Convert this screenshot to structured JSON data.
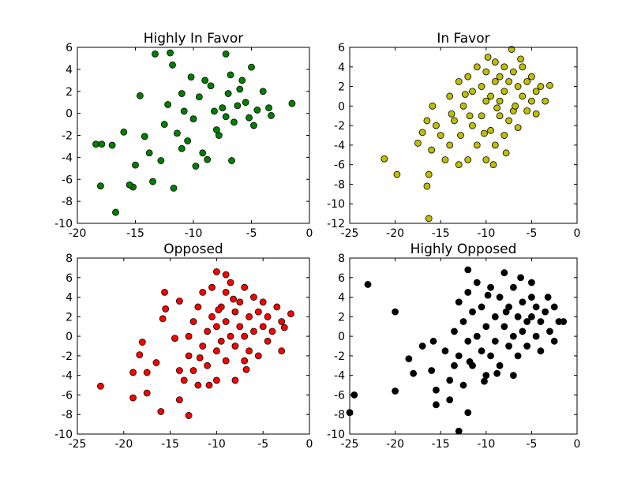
{
  "chart_data": [
    {
      "type": "scatter",
      "title": "Highly In Favor",
      "color": "#008000",
      "xlim": [
        -20,
        0
      ],
      "ylim": [
        -10,
        6
      ],
      "xticks": [
        -20,
        -15,
        -10,
        -5,
        0
      ],
      "yticks": [
        -10,
        -8,
        -6,
        -4,
        -2,
        0,
        2,
        4,
        6
      ],
      "x": [
        -16.7,
        -18,
        -15.2,
        -15.5,
        -18.4,
        -17.9,
        -17,
        -13.3,
        -12,
        -11.8,
        -7.2,
        -1.5,
        -11.7,
        -14.6,
        -16,
        -6.7,
        -3.3,
        -15,
        -13.5,
        -14.2,
        -12.5,
        -12.8,
        -11,
        -10.5,
        -10,
        -9.5,
        -9,
        -8.5,
        -8,
        -7.5,
        -7,
        -6.5,
        -6,
        -5.5,
        -5,
        -4.5,
        -4,
        -3.5,
        -9.8,
        -8.8,
        -7.8,
        -10.2,
        -11.4,
        -12.2,
        -13.8,
        -9.2,
        -7.2,
        -6.2,
        -5.2,
        -8.2,
        -6.8,
        -5.8,
        -10.8,
        -11,
        -4.8
      ],
      "y": [
        -9,
        -6.6,
        -6.7,
        -6.5,
        -2.8,
        -2.8,
        -2.9,
        5.4,
        5.5,
        4.4,
        5.4,
        0.9,
        -6.8,
        1.6,
        -1.7,
        -4.3,
        -0.2,
        -4.7,
        -6.2,
        -2.1,
        -1,
        -4.3,
        -3.2,
        -2.5,
        -0.5,
        1.5,
        3,
        2.5,
        -1.5,
        0.5,
        1.8,
        -0.8,
        2.2,
        1,
        4.2,
        0.3,
        2,
        0.5,
        -4.8,
        -4.2,
        -2,
        3.3,
        -1.8,
        0.8,
        -3.6,
        -3.6,
        -0.3,
        0.7,
        -0.4,
        0.2,
        3.5,
        3,
        0.2,
        1.8,
        -1.1
      ]
    },
    {
      "type": "scatter",
      "title": "In Favor",
      "color": "#bfbf00",
      "xlim": [
        -25,
        0
      ],
      "ylim": [
        -12,
        6
      ],
      "xticks": [
        -25,
        -20,
        -15,
        -10,
        -5,
        0
      ],
      "yticks": [
        -12,
        -10,
        -8,
        -6,
        -4,
        -2,
        0,
        2,
        4,
        6
      ],
      "x": [
        -16.3,
        -21.2,
        -19.8,
        -16.5,
        -16.3,
        -17,
        -17.5,
        -16,
        -16.5,
        -15.5,
        -15.9,
        -15,
        -14.5,
        -14,
        -14,
        -13.5,
        -13,
        -13,
        -12.8,
        -12.5,
        -12,
        -12,
        -11.5,
        -11.5,
        -11,
        -11,
        -10.5,
        -10.5,
        -10,
        -10,
        -10,
        -9.8,
        -9.5,
        -9.5,
        -9,
        -9,
        -9,
        -8.5,
        -8.5,
        -8.5,
        -8,
        -8,
        -8,
        -7.5,
        -7.5,
        -7.2,
        -7,
        -7,
        -6.8,
        -6.5,
        -6.5,
        -6,
        -6,
        -5.5,
        -5.5,
        -5,
        -5,
        -4.5,
        -4.5,
        -4,
        -3.5,
        -3,
        -7.8,
        -9.2,
        -11.8,
        -12.3,
        -13.8,
        -10.2,
        -8.8,
        -6.2
      ],
      "y": [
        -11.5,
        -5.4,
        -7,
        -8.2,
        -7,
        -2.7,
        -3.8,
        -4.5,
        -1.5,
        -2,
        0,
        -3,
        -5.5,
        -4,
        1,
        -1.5,
        -6,
        2.5,
        -3,
        0,
        -5.5,
        3,
        -2,
        1.5,
        -4,
        4,
        -1,
        2,
        -5.5,
        0.5,
        3.5,
        5,
        -2.5,
        1,
        -4,
        2.5,
        4.5,
        -1,
        0.5,
        3,
        -3,
        1.5,
        4,
        -1.5,
        2.5,
        5.8,
        -0.5,
        3.5,
        0,
        -2.2,
        2,
        1,
        4,
        -0.5,
        2.5,
        0.5,
        3,
        1.5,
        -0.8,
        2,
        0.5,
        2.1,
        -4.8,
        -6,
        -1,
        1.2,
        -0.8,
        -2.8,
        -0.2,
        4.8
      ]
    },
    {
      "type": "scatter",
      "title": "Opposed",
      "color": "#ff0000",
      "xlim": [
        -25,
        0
      ],
      "ylim": [
        -10,
        8
      ],
      "xticks": [
        -25,
        -20,
        -15,
        -10,
        -5,
        0
      ],
      "yticks": [
        -10,
        -8,
        -6,
        -4,
        -2,
        0,
        2,
        4,
        6,
        8
      ],
      "x": [
        -22.5,
        -19,
        -17.5,
        -16,
        -13,
        -17.5,
        -19,
        -18.3,
        -18,
        -16.5,
        -15.6,
        -15.5,
        -14,
        -15.8,
        -10,
        -9,
        -2,
        -2.7,
        -14,
        -13.5,
        -14,
        -13,
        -14.5,
        -13,
        -12.5,
        -12.5,
        -12,
        -12,
        -11.5,
        -11.5,
        -11,
        -11,
        -10.5,
        -10.5,
        -10,
        -10,
        -10,
        -9.5,
        -9.5,
        -9,
        -9,
        -9,
        -8.5,
        -8.5,
        -8,
        -8,
        -8,
        -7.5,
        -7.5,
        -7,
        -7,
        -7,
        -6.5,
        -6.5,
        -6,
        -6,
        -5.5,
        -5.5,
        -5,
        -5,
        -4.5,
        -4.5,
        -4,
        -3.5,
        -3,
        -3,
        -11.8,
        -10.8,
        -9.8,
        -8.2,
        -6.8
      ],
      "y": [
        -5.1,
        -6.3,
        -5.8,
        -7.7,
        -8.1,
        -3.7,
        -3.7,
        -1.9,
        -0.6,
        -2.7,
        4.5,
        2.8,
        3.6,
        1.8,
        6.6,
        6.3,
        2.3,
        0.9,
        -6.5,
        -4.5,
        -3.5,
        -2,
        -0.2,
        0,
        1.5,
        -3.5,
        3,
        -5,
        -1,
        4.5,
        0.5,
        -3,
        2,
        5,
        -1.5,
        1,
        -4.5,
        3,
        -0.5,
        4.5,
        -2.5,
        1.5,
        0,
        5.5,
        2.5,
        -4.5,
        -1,
        3.5,
        1,
        -2.5,
        5,
        0,
        2,
        -1.5,
        4,
        0.5,
        2.5,
        -2,
        1,
        3.5,
        -0.5,
        2,
        0.5,
        3,
        -1.5,
        1.5,
        -2.2,
        -5,
        2.7,
        3.8,
        -3.4
      ]
    },
    {
      "type": "scatter",
      "title": "Highly Opposed",
      "color": "#000000",
      "xlim": [
        -25,
        0
      ],
      "ylim": [
        -10,
        8
      ],
      "xticks": [
        -25,
        -20,
        -15,
        -10,
        -5,
        0
      ],
      "yticks": [
        -10,
        -8,
        -6,
        -4,
        -2,
        0,
        2,
        4,
        6,
        8
      ],
      "x": [
        -25,
        -24.5,
        -23,
        -20,
        -20,
        -18,
        -15.5,
        -15.5,
        -13,
        -14,
        -12,
        -12,
        -13,
        -18.5,
        -17,
        -16,
        -15.8,
        -14.5,
        -14,
        -13.5,
        -13.5,
        -13,
        -12.5,
        -12.5,
        -12,
        -12,
        -11.5,
        -11.5,
        -11,
        -11,
        -10.5,
        -10.5,
        -10,
        -10,
        -9.5,
        -9.5,
        -9,
        -9,
        -8.5,
        -8.5,
        -8,
        -8,
        -7.5,
        -7.5,
        -7,
        -7,
        -7,
        -6.5,
        -6.5,
        -6,
        -6,
        -5.5,
        -5.5,
        -5,
        -5,
        -4.5,
        -4.5,
        -4,
        -4,
        -3.5,
        -3,
        -2.5,
        -2,
        -1.5,
        -2.5,
        -5,
        -6.2,
        -10.2,
        -11.8,
        -8.8,
        -9.8,
        -3.2,
        -7.8
      ],
      "y": [
        -7.8,
        -6,
        5.3,
        2.5,
        -5.6,
        -3.8,
        -5.5,
        -7,
        -9.7,
        -6.5,
        -7.8,
        6.8,
        3.5,
        -2.3,
        -1,
        -3.5,
        -0.5,
        -1.5,
        -4.5,
        -3,
        0.5,
        -2,
        -5,
        1.5,
        -0.5,
        4.5,
        2.5,
        -3,
        0,
        5.5,
        -1.5,
        3,
        1,
        -4,
        5,
        -2,
        2,
        -0.5,
        4,
        -3,
        1,
        6.5,
        -1,
        3,
        0,
        -4,
        5,
        2,
        -2,
        3.5,
        0.5,
        1.5,
        -1,
        4,
        2,
        0,
        3,
        1.5,
        -1.5,
        2.5,
        0.5,
        3,
        1.5,
        1.5,
        -0.5,
        5.5,
        6,
        -4.6,
        -2.6,
        -3.8,
        4.2,
        4,
        2.5
      ]
    }
  ]
}
